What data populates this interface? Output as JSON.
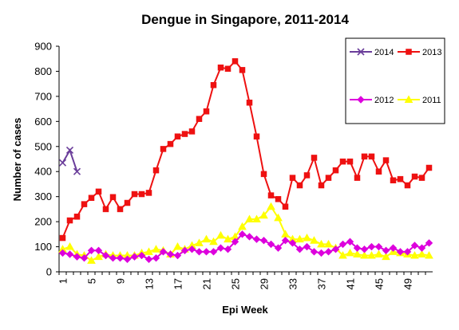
{
  "chart_data": {
    "type": "line",
    "title": "Dengue in Singapore, 2011-2014",
    "xlabel": "Epi Week",
    "ylabel": "Number of cases",
    "ylim": [
      0,
      900
    ],
    "yticks": [
      0,
      100,
      200,
      300,
      400,
      500,
      600,
      700,
      800,
      900
    ],
    "xlim": [
      1,
      52
    ],
    "xticks": [
      1,
      5,
      9,
      13,
      17,
      21,
      25,
      29,
      33,
      37,
      41,
      45,
      49
    ],
    "grid": false,
    "legend_placement": "top-right",
    "series": [
      {
        "name": "2014",
        "color": "#6a3d9a",
        "marker": "x",
        "x": [
          1,
          2,
          3,
          4
        ],
        "y": [
          435,
          485,
          400,
          null
        ]
      },
      {
        "name": "2013",
        "color": "#ee1111",
        "marker": "square",
        "x": [
          1,
          2,
          3,
          4,
          5,
          6,
          7,
          8,
          9,
          10,
          11,
          12,
          13,
          14,
          15,
          16,
          17,
          18,
          19,
          20,
          21,
          22,
          23,
          24,
          25,
          26,
          27,
          28,
          29,
          30,
          31,
          32,
          33,
          34,
          35,
          36,
          37,
          38,
          39,
          40,
          41,
          42,
          43,
          44,
          45,
          46,
          47,
          48,
          49,
          50,
          51,
          52
        ],
        "y": [
          135,
          205,
          220,
          270,
          295,
          320,
          250,
          298,
          250,
          275,
          310,
          310,
          315,
          405,
          490,
          510,
          540,
          550,
          560,
          610,
          640,
          745,
          815,
          810,
          840,
          805,
          675,
          540,
          390,
          305,
          290,
          260,
          375,
          345,
          385,
          455,
          345,
          375,
          405,
          440,
          440,
          375,
          460,
          460,
          400,
          445,
          365,
          370,
          345,
          380,
          375,
          415
        ]
      },
      {
        "name": "2012",
        "color": "#dd00dd",
        "marker": "diamond",
        "x": [
          1,
          2,
          3,
          4,
          5,
          6,
          7,
          8,
          9,
          10,
          11,
          12,
          13,
          14,
          15,
          16,
          17,
          18,
          19,
          20,
          21,
          22,
          23,
          24,
          25,
          26,
          27,
          28,
          29,
          30,
          31,
          32,
          33,
          34,
          35,
          36,
          37,
          38,
          39,
          40,
          41,
          42,
          43,
          44,
          45,
          46,
          47,
          48,
          49,
          50,
          51,
          52
        ],
        "y": [
          75,
          70,
          60,
          55,
          85,
          85,
          65,
          55,
          55,
          50,
          60,
          65,
          50,
          55,
          80,
          70,
          65,
          85,
          90,
          80,
          80,
          80,
          95,
          90,
          120,
          150,
          140,
          130,
          125,
          110,
          95,
          125,
          115,
          90,
          100,
          80,
          75,
          80,
          90,
          110,
          120,
          95,
          90,
          100,
          100,
          85,
          95,
          80,
          80,
          105,
          95,
          115
        ]
      },
      {
        "name": "2011",
        "color": "#ffff00",
        "marker": "triangle",
        "x": [
          1,
          2,
          3,
          4,
          5,
          6,
          7,
          8,
          9,
          10,
          11,
          12,
          13,
          14,
          15,
          16,
          17,
          18,
          19,
          20,
          21,
          22,
          23,
          24,
          25,
          26,
          27,
          28,
          29,
          30,
          31,
          32,
          33,
          34,
          35,
          36,
          37,
          38,
          39,
          40,
          41,
          42,
          43,
          44,
          45,
          46,
          47,
          48,
          49,
          50,
          51,
          52
        ],
        "y": [
          90,
          100,
          70,
          65,
          45,
          60,
          70,
          65,
          65,
          65,
          65,
          75,
          80,
          90,
          85,
          70,
          100,
          90,
          105,
          115,
          130,
          120,
          145,
          130,
          140,
          180,
          210,
          210,
          225,
          260,
          215,
          150,
          130,
          130,
          135,
          125,
          110,
          110,
          95,
          65,
          75,
          70,
          65,
          65,
          70,
          60,
          80,
          75,
          70,
          65,
          70,
          65
        ]
      }
    ],
    "legend_rows": [
      [
        "2014",
        "2013"
      ],
      [
        "2012",
        "2011"
      ]
    ]
  }
}
